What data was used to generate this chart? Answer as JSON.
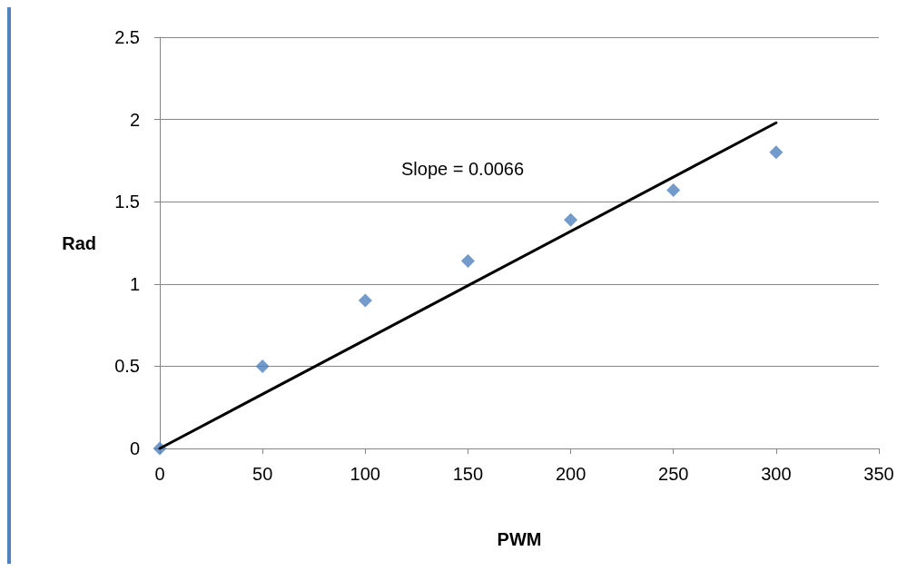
{
  "chart_data": {
    "type": "scatter",
    "xlabel": "PWM",
    "ylabel": "Rad",
    "x": [
      0,
      50,
      100,
      150,
      200,
      250,
      300
    ],
    "series": [
      {
        "color": "#4f81bd",
        "marker": "diamond",
        "values": [
          0,
          0.5,
          0.9,
          1.14,
          1.39,
          1.57,
          1.8
        ]
      },
      {
        "type": "line",
        "color": "#000000",
        "marker": "none",
        "x": [
          0,
          300
        ],
        "values": [
          0,
          1.98
        ]
      }
    ],
    "annotations": [
      "Slope = 0.0066"
    ],
    "xlim": [
      0,
      350
    ],
    "xticks": [
      0,
      50,
      100,
      150,
      200,
      250,
      300,
      350
    ],
    "ylim": [
      0,
      2.5
    ],
    "yticks": [
      0,
      0.5,
      1,
      1.5,
      2,
      2.5
    ],
    "grid": "y"
  }
}
